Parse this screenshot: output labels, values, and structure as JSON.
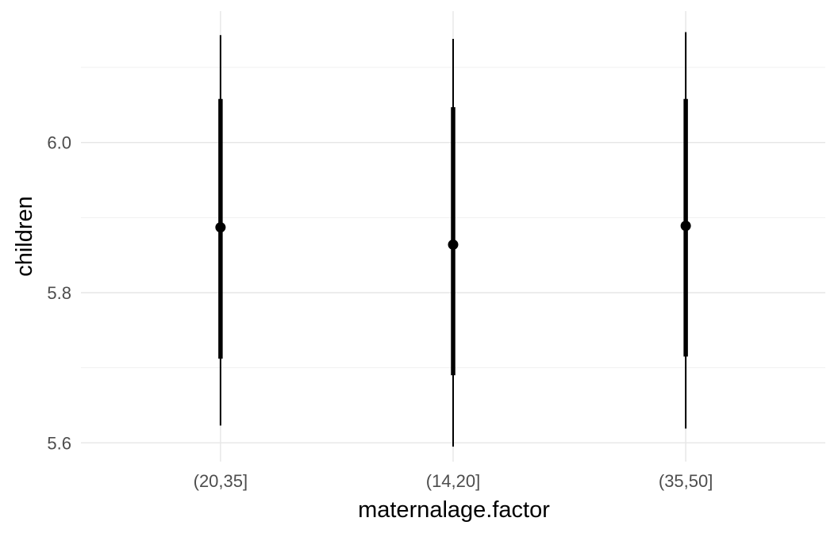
{
  "chart_data": {
    "type": "pointrange",
    "xlabel": "maternalage.factor",
    "ylabel": "children",
    "categories": [
      "(20,35]",
      "(14,20]",
      "(35,50]"
    ],
    "ylim": [
      5.575,
      6.175
    ],
    "y_major_ticks": [
      5.6,
      5.8,
      6.0
    ],
    "y_major_tick_labels": [
      "5.6",
      "5.8",
      "6.0"
    ],
    "y_minor_ticks": [
      5.7,
      5.9,
      6.1
    ],
    "grid": true,
    "legend": "none",
    "series": [
      {
        "point": [
          5.887,
          5.864,
          5.889
        ],
        "inner_low": [
          5.712,
          5.69,
          5.715
        ],
        "inner_high": [
          6.058,
          6.047,
          6.058
        ],
        "outer_low": [
          5.623,
          5.595,
          5.619
        ],
        "outer_high": [
          6.143,
          6.138,
          6.147
        ]
      }
    ],
    "colors": {
      "mark": "#000000",
      "grid": "#e6e6e6",
      "tick_text": "#4d4d4d"
    }
  }
}
